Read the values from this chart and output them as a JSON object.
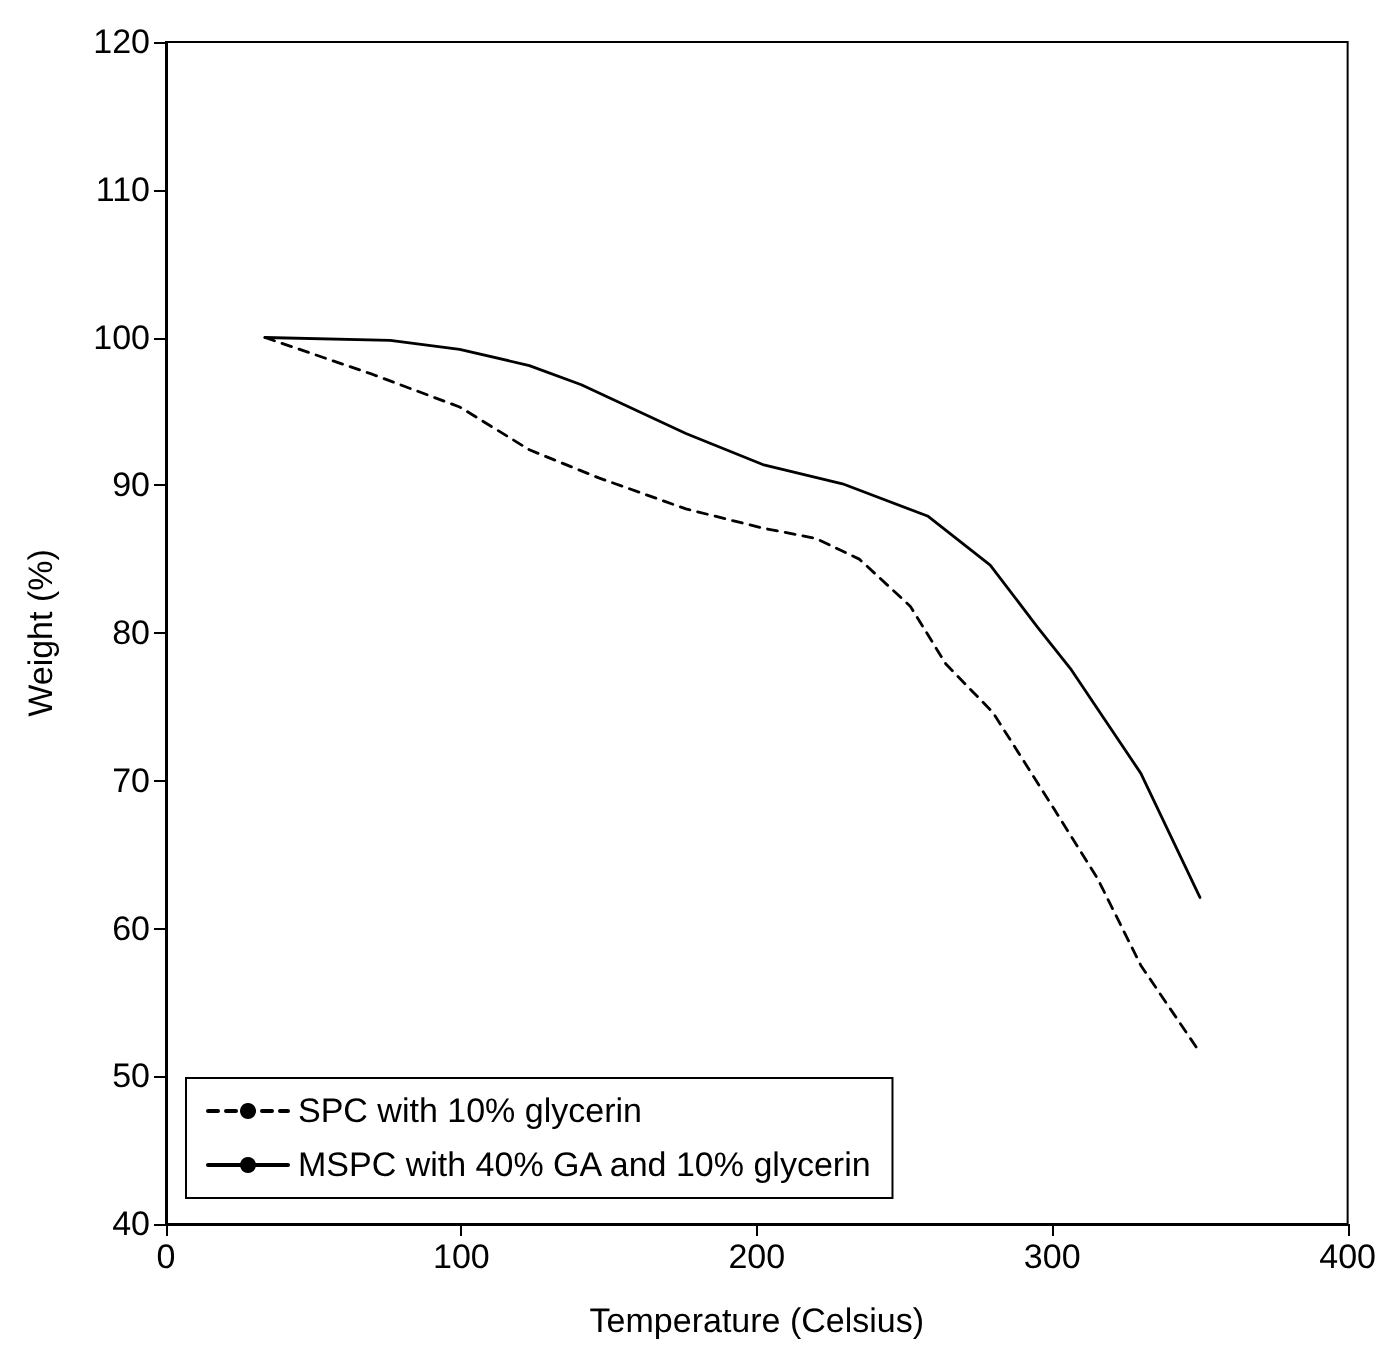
{
  "chart_data": {
    "type": "line",
    "xlabel": "Temperature (Celsius)",
    "ylabel": "Weight (%)",
    "xlim": [
      0,
      400
    ],
    "xticks": [
      0,
      100,
      200,
      300,
      400
    ],
    "ylim": [
      40,
      120
    ],
    "yticks": [
      40,
      50,
      60,
      70,
      80,
      90,
      100,
      110,
      120
    ],
    "grid": false,
    "legend": "bottom left",
    "marker": "none",
    "series": [
      {
        "name": "SPC with 10% glycerin",
        "color": "#000000",
        "line_style": "dashed",
        "x": [
          33.5,
          70,
          99.4,
          123,
          146.5,
          176,
          202,
          220,
          234.7,
          252,
          264,
          280,
          300.6,
          315.3,
          330,
          349
        ],
        "values": [
          100,
          97.5,
          95.3,
          92.4,
          90.5,
          88.4,
          87.1,
          86.4,
          85.0,
          81.8,
          77.9,
          74.6,
          68.1,
          63.4,
          57.5,
          51.9
        ]
      },
      {
        "name": "MSPC with 40% GA and 10% glycerin",
        "color": "#000000",
        "line_style": "solid",
        "x": [
          33.5,
          75.9,
          99.4,
          123,
          140.6,
          176,
          202,
          229,
          258,
          279,
          295,
          306.5,
          330,
          350
        ],
        "values": [
          100,
          99.8,
          99.2,
          98.1,
          96.8,
          93.5,
          91.4,
          90.1,
          87.9,
          84.6,
          80.4,
          77.5,
          70.5,
          62.1
        ]
      }
    ]
  }
}
